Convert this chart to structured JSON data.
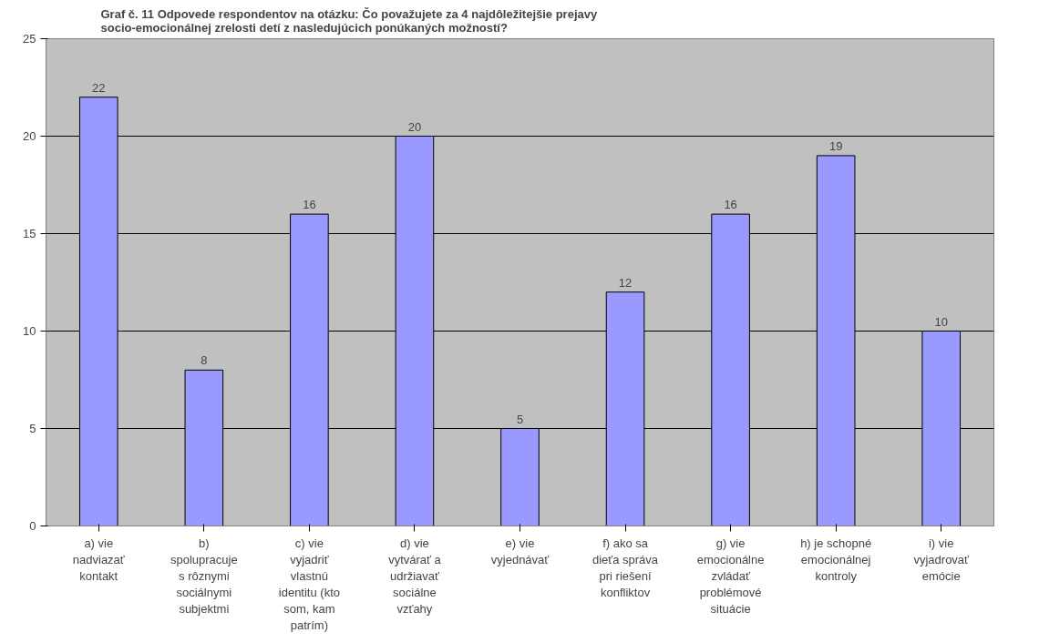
{
  "chart_data": {
    "type": "bar",
    "title": "Graf č. 11 Odpovede respondentov na otázku: Čo považujete za 4 najdôležitejšie prejavy\nsocio-emocionálnej zrelosti detí z nasledujúcich ponúkaných možností?",
    "categories": [
      "a) vie nadviazať kontakt",
      "b) spolupracuje s rôznymi sociálnymi subjektmi",
      "c) vie vyjadriť vlastnú identitu (kto som, kam patrím)",
      "d) vie vytvárať a udržiavať sociálne vzťahy",
      "e) vie vyjednávať",
      "f) ako sa dieťa správa pri riešení konfliktov",
      "g) vie emocionálne zvládať problémové situácie",
      "h) je schopné emocionálnej kontroly",
      "i) vie vyjadrovať emócie"
    ],
    "values": [
      22,
      8,
      16,
      20,
      5,
      12,
      16,
      19,
      10
    ],
    "color": "#9999ff",
    "ylim": [
      0,
      25
    ],
    "yticks": [
      0,
      5,
      10,
      15,
      20,
      25
    ],
    "grid": "y",
    "data_labels": true
  }
}
